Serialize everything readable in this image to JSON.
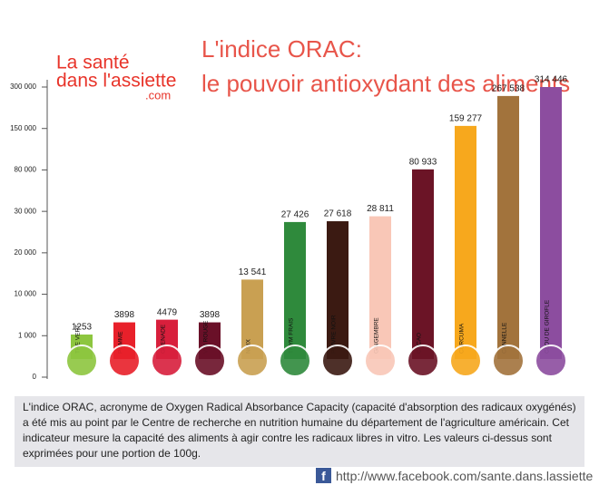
{
  "logo": {
    "line1": "La santé",
    "line2": "dans l'assiette",
    "line3": ".com"
  },
  "chart_data": {
    "type": "bar",
    "title": "L'indice ORAC:",
    "subtitle": "le pouvoir antioxydant des aliments",
    "categories": [
      "THE VERT",
      "POMME",
      "GRENADE",
      "VIN ROUGE",
      "NOIX",
      "THYM FRAIS",
      "POIVRE NOIR",
      "GINGEMBRE",
      "CACAO",
      "CURCUMA",
      "CANNELLE",
      "CLOU DE GIROFLE"
    ],
    "values": [
      1253,
      3898,
      4479,
      3898,
      13541,
      27426,
      27618,
      28811,
      80933,
      159277,
      267538,
      314446
    ],
    "value_labels": [
      "1253",
      "3898",
      "4479",
      "3898",
      "13 541",
      "27 426",
      "27 618",
      "28 811",
      "80 933",
      "159 277",
      "267 538",
      "314 446"
    ],
    "colors": [
      "#8dc63f",
      "#e8202a",
      "#d81f3c",
      "#6a1028",
      "#c9a052",
      "#2f8a3c",
      "#3b1a12",
      "#f9c7b7",
      "#6b1426",
      "#f7a81d",
      "#a2733c",
      "#8c4d9f"
    ],
    "ylim": [
      0,
      300000
    ],
    "yticks": [
      0,
      {
        "value": 1000,
        "label": "1 000"
      },
      {
        "value": 10000,
        "label": "10 000"
      },
      {
        "value": 20000,
        "label": "20 000"
      },
      {
        "value": 30000,
        "label": "30 000"
      },
      {
        "value": 80000,
        "label": "80 000"
      },
      {
        "value": 150000,
        "label": "150 000"
      },
      {
        "value": 300000,
        "label": "300 000"
      }
    ]
  },
  "description": "L'indice ORAC, acronyme de Oxygen Radical Absorbance Capacity (capacité d'absorption des radicaux oxygénés) a été mis au point par le Centre de recherche en nutrition humaine du département de l'agriculture américain. Cet indicateur mesure la capacité des aliments à agir contre les radicaux libres in vitro. Les valeurs ci-dessus sont exprimées pour une portion de 100g.",
  "url": "http://www.facebook.com/sante.dans.lassiette"
}
